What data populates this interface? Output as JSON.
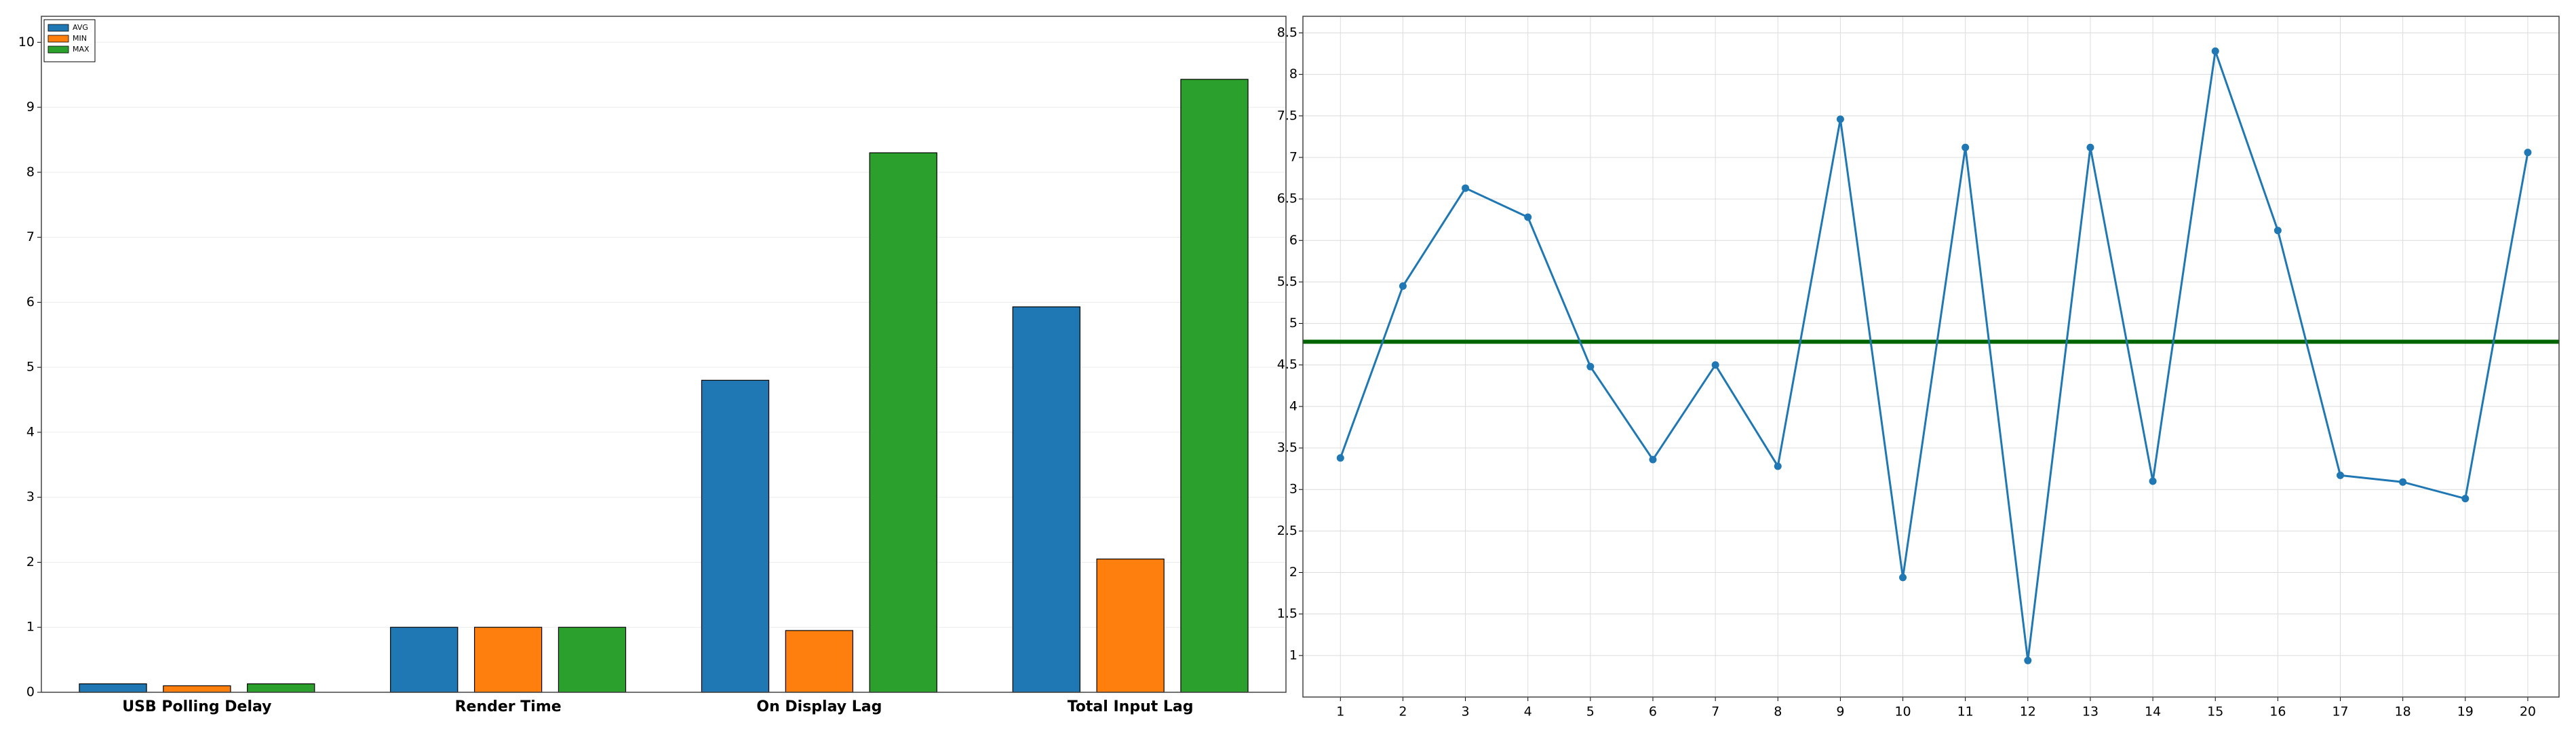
{
  "chart_data": [
    {
      "type": "bar",
      "categories": [
        "USB Polling Delay",
        "Render Time",
        "On Display Lag",
        "Total Input Lag"
      ],
      "series": [
        {
          "name": "AVG",
          "color": "#1f77b4",
          "values": [
            0.13,
            1.0,
            4.8,
            5.93
          ]
        },
        {
          "name": "MIN",
          "color": "#ff7f0e",
          "values": [
            0.1,
            1.0,
            0.95,
            2.05
          ]
        },
        {
          "name": "MAX",
          "color": "#2ca02c",
          "values": [
            0.13,
            1.0,
            8.3,
            9.43
          ]
        }
      ],
      "ylim": [
        0,
        10.4
      ],
      "yticks": [
        0,
        1,
        2,
        3,
        4,
        5,
        6,
        7,
        8,
        9,
        10
      ],
      "grid": true,
      "legend": "upper left"
    },
    {
      "type": "line",
      "x": [
        1,
        2,
        3,
        4,
        5,
        6,
        7,
        8,
        9,
        10,
        11,
        12,
        13,
        14,
        15,
        16,
        17,
        18,
        19,
        20
      ],
      "series": [
        {
          "color": "#1f77b4",
          "values": [
            3.38,
            5.45,
            6.63,
            6.28,
            4.48,
            3.36,
            4.5,
            3.28,
            7.46,
            1.94,
            7.12,
            0.94,
            7.12,
            3.1,
            8.28,
            6.12,
            3.17,
            3.09,
            2.89,
            7.06
          ]
        }
      ],
      "hline": {
        "value": 4.78,
        "color": "#006400"
      },
      "xlim": [
        0.4,
        20.5
      ],
      "xticks": [
        1,
        2,
        3,
        4,
        5,
        6,
        7,
        8,
        9,
        10,
        11,
        12,
        13,
        14,
        15,
        16,
        17,
        18,
        19,
        20
      ],
      "ylim": [
        0.5,
        8.7
      ],
      "yticks": [
        1,
        1.5,
        2,
        2.5,
        3,
        3.5,
        4,
        4.5,
        5,
        5.5,
        6,
        6.5,
        7,
        7.5,
        8,
        8.5
      ],
      "grid": true
    }
  ]
}
